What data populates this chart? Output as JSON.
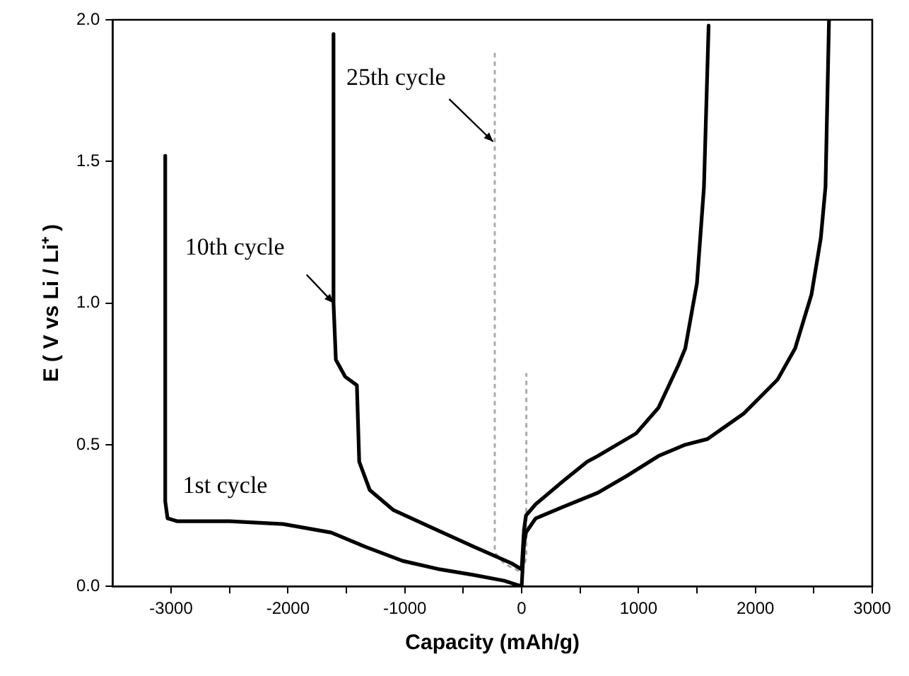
{
  "chart_data": {
    "type": "line",
    "xlabel": "Capacity (mAh/g)",
    "ylabel": "E ( V vs Li / Li⁺ )",
    "xlim": [
      -3500,
      3000
    ],
    "ylim": [
      0,
      2
    ],
    "xticks": [
      -3000,
      {
        "value": -2500,
        "label": null
      },
      -2000,
      {
        "value": -1500,
        "label": null
      },
      -1000,
      {
        "value": -500,
        "label": null
      },
      0,
      {
        "value": 500,
        "label": null
      },
      1000,
      {
        "value": 1500,
        "label": null
      },
      2000,
      {
        "value": 2500,
        "label": null
      },
      3000
    ],
    "yticks": [
      {
        "value": 0,
        "label": "0.0"
      },
      0.5,
      {
        "value": 1,
        "label": "1.0"
      },
      1.5,
      {
        "value": 2,
        "label": "2.0"
      }
    ],
    "grid": false,
    "legend": false,
    "marker": "none",
    "series": [
      {
        "name": "1st cycle",
        "color": "#000000",
        "line_style": "solid",
        "x": [
          -3050,
          -3050,
          -3030,
          -2950,
          -2500,
          -2040,
          -1630,
          -1340,
          -1020,
          -700,
          -410,
          -150,
          0,
          20,
          37,
          120,
          350,
          650,
          900,
          1170,
          1400,
          1590,
          1900,
          2190,
          2340,
          2480,
          2560,
          2600,
          2630
        ],
        "values": [
          1.52,
          0.3,
          0.24,
          0.23,
          0.23,
          0.22,
          0.19,
          0.14,
          0.09,
          0.06,
          0.04,
          0.02,
          0,
          0.15,
          0.19,
          0.24,
          0.28,
          0.33,
          0.39,
          0.46,
          0.5,
          0.52,
          0.61,
          0.73,
          0.84,
          1.03,
          1.23,
          1.41,
          2.0
        ]
      },
      {
        "name": "10th cycle",
        "color": "#000000",
        "line_style": "solid",
        "x": [
          -1610,
          -1610,
          -1590,
          -1510,
          -1410,
          -1390,
          -1300,
          -1100,
          -730,
          -410,
          -80,
          0,
          20,
          37,
          120,
          350,
          560,
          650,
          980,
          1170,
          1340,
          1400,
          1500,
          1560,
          1600
        ],
        "values": [
          1.95,
          1.0,
          0.8,
          0.74,
          0.71,
          0.44,
          0.34,
          0.27,
          0.2,
          0.14,
          0.08,
          0.06,
          0.2,
          0.25,
          0.29,
          0.37,
          0.44,
          0.46,
          0.54,
          0.63,
          0.78,
          0.84,
          1.07,
          1.41,
          1.98
        ]
      },
      {
        "name": "25th cycle",
        "color": "#aaaaaa",
        "line_style": "dotted",
        "x": [
          -230,
          -230,
          -150,
          0,
          40,
          40
        ],
        "values": [
          1.88,
          0.12,
          0.08,
          0.05,
          0.1,
          0.75
        ]
      }
    ]
  }
}
